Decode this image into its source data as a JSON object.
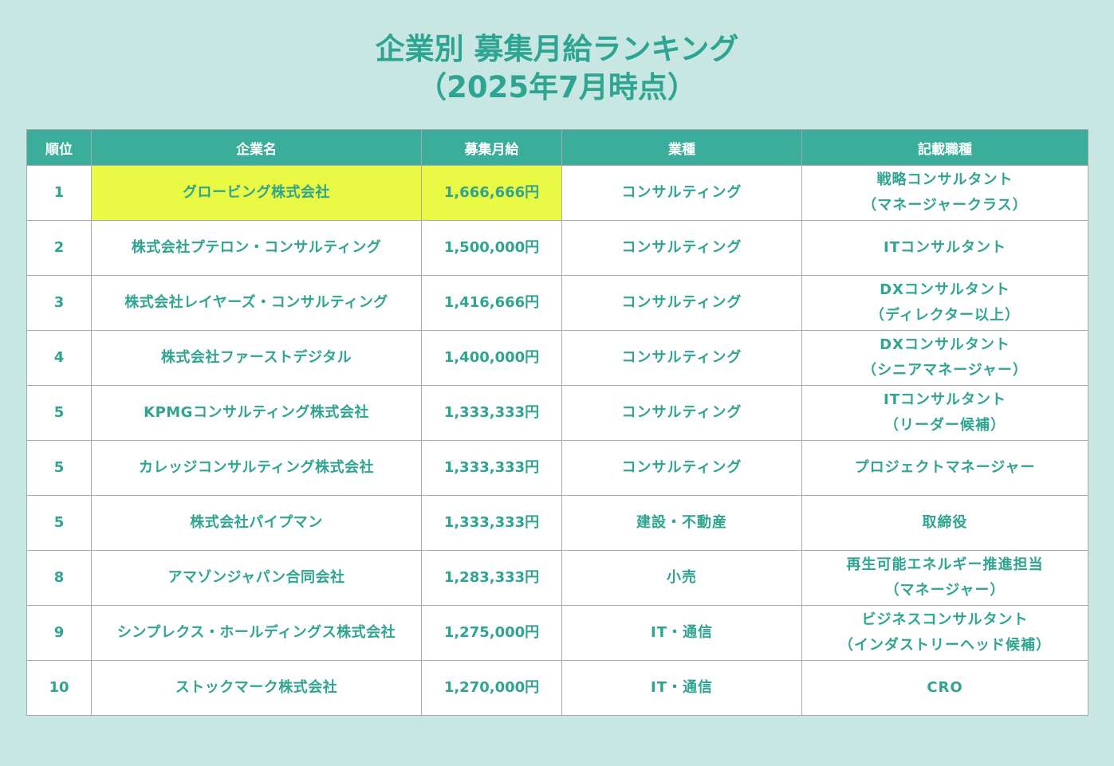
{
  "title": {
    "line1": "企業別 募集月給ランキング",
    "line2": "（2025年7月時点）"
  },
  "colors": {
    "background": "#c8e7e2",
    "header_bg": "#3aae9b",
    "text_teal": "#2fa491",
    "highlight": "#e9f944"
  },
  "table": {
    "headers": {
      "rank": "順位",
      "company": "企業名",
      "salary": "募集月給",
      "industry": "業種",
      "job": "記載職種"
    },
    "rows": [
      {
        "rank": "1",
        "company": "グロービング株式会社",
        "salary": "1,666,666円",
        "industry": "コンサルティング",
        "job1": "戦略コンサルタント",
        "job2": "（マネージャークラス）",
        "highlight": true
      },
      {
        "rank": "2",
        "company": "株式会社プテロン・コンサルティング",
        "salary": "1,500,000円",
        "industry": "コンサルティング",
        "job1": "ITコンサルタント",
        "job2": ""
      },
      {
        "rank": "3",
        "company": "株式会社レイヤーズ・コンサルティング",
        "salary": "1,416,666円",
        "industry": "コンサルティング",
        "job1": "DXコンサルタント",
        "job2": "（ディレクター以上）"
      },
      {
        "rank": "4",
        "company": "株式会社ファーストデジタル",
        "salary": "1,400,000円",
        "industry": "コンサルティング",
        "job1": "DXコンサルタント",
        "job2": "（シニアマネージャー）"
      },
      {
        "rank": "5",
        "company": "KPMGコンサルティング株式会社",
        "salary": "1,333,333円",
        "industry": "コンサルティング",
        "job1": "ITコンサルタント",
        "job2": "（リーダー候補）"
      },
      {
        "rank": "5",
        "company": "カレッジコンサルティング株式会社",
        "salary": "1,333,333円",
        "industry": "コンサルティング",
        "job1": "プロジェクトマネージャー",
        "job2": ""
      },
      {
        "rank": "5",
        "company": "株式会社パイプマン",
        "salary": "1,333,333円",
        "industry": "建設・不動産",
        "job1": "取締役",
        "job2": ""
      },
      {
        "rank": "8",
        "company": "アマゾンジャパン合同会社",
        "salary": "1,283,333円",
        "industry": "小売",
        "job1": "再生可能エネルギー推進担当",
        "job2": "（マネージャー）"
      },
      {
        "rank": "9",
        "company": "シンプレクス・ホールディングス株式会社",
        "salary": "1,275,000円",
        "industry": "IT・通信",
        "job1": "ビジネスコンサルタント",
        "job2": "（インダストリーヘッド候補）"
      },
      {
        "rank": "10",
        "company": "ストックマーク株式会社",
        "salary": "1,270,000円",
        "industry": "IT・通信",
        "job1": "CRO",
        "job2": ""
      }
    ]
  }
}
